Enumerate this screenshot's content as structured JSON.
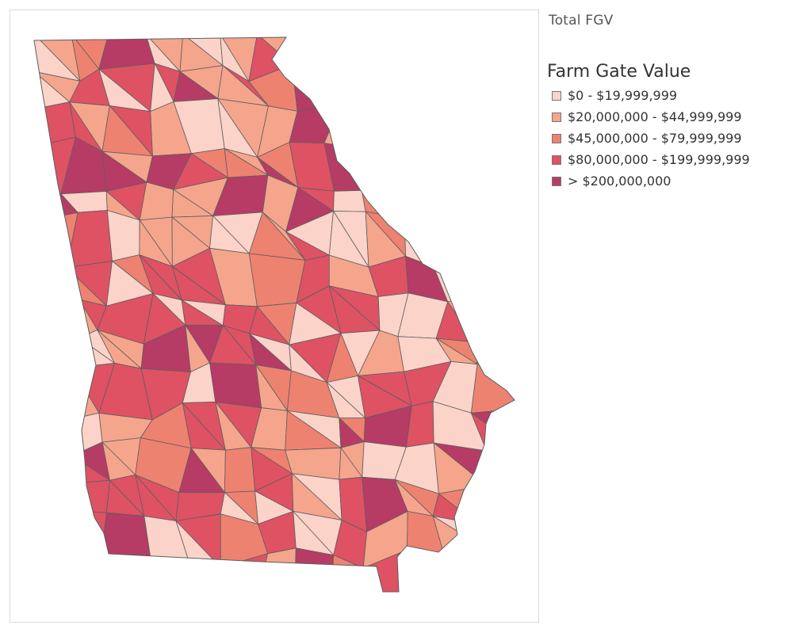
{
  "header": {
    "filter_label": "Total FGV"
  },
  "legend": {
    "title": "Farm Gate Value",
    "items": [
      {
        "label": "$0 - $19,999,999",
        "color": "#fbd3c8"
      },
      {
        "label": "$20,000,000 - $44,999,999",
        "color": "#f5a58c"
      },
      {
        "label": "$45,000,000 - $79,999,999",
        "color": "#ee8270"
      },
      {
        "label": "$80,000,000 - $199,999,999",
        "color": "#de5264"
      },
      {
        "label": "> $200,000,000",
        "color": "#b63c65"
      }
    ]
  },
  "map": {
    "region": "Georgia",
    "feature": "counties",
    "stroke_color": "#5e5e5e",
    "border_color": "#d9d9d9"
  }
}
